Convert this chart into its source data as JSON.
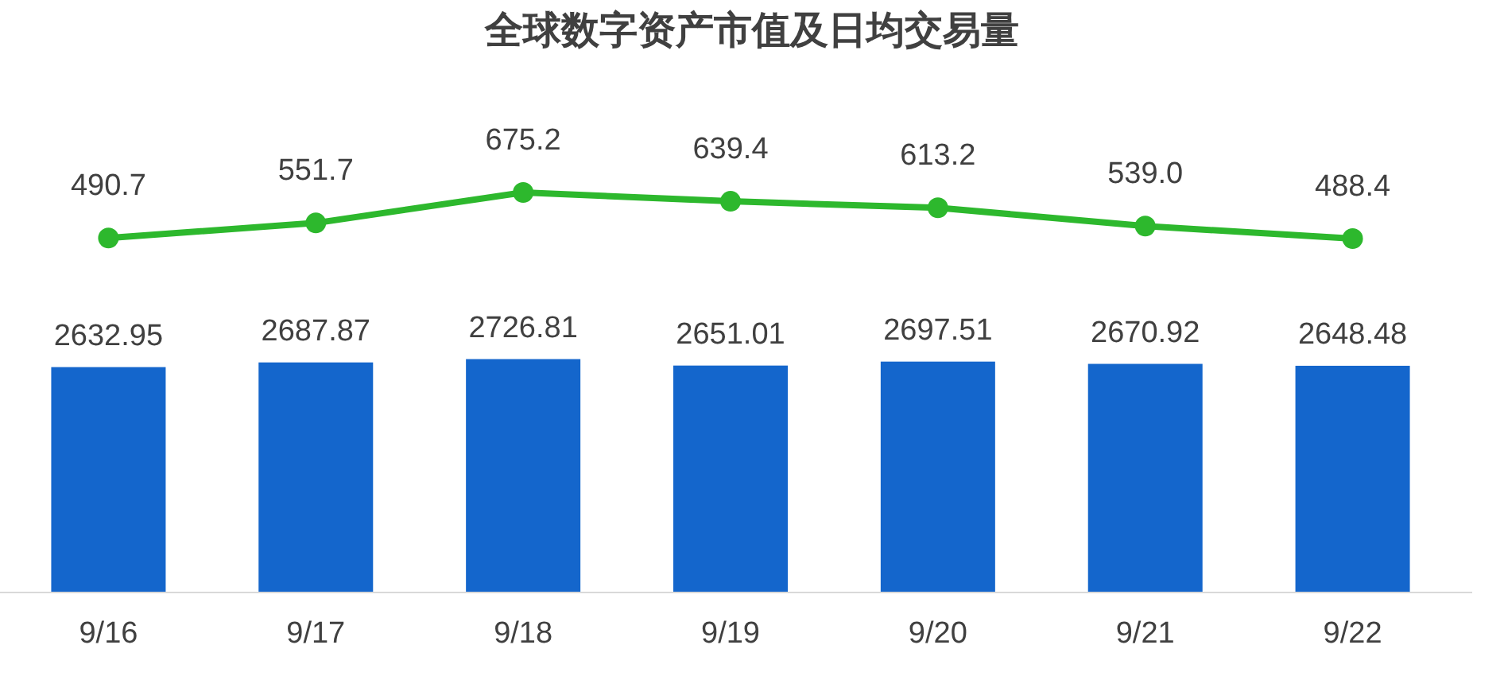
{
  "chart_data": [
    {
      "type": "line",
      "title": "全球数字资产市值及日均交易量",
      "categories": [
        null,
        null,
        null,
        null,
        null,
        null,
        null
      ],
      "tick_labels": false,
      "marker": "circle",
      "series": [
        {
          "color": "#2db82d",
          "values": [
            490.7,
            551.7,
            675.2,
            639.4,
            613.2,
            539.0,
            488.4
          ],
          "value_labels": [
            "490.7",
            "551.7",
            "675.2",
            "639.4",
            "613.2",
            "539.0",
            "488.4"
          ]
        }
      ]
    },
    {
      "type": "bar",
      "categories": [
        "9/16",
        "9/17",
        "9/18",
        "9/19",
        "9/20",
        "9/21",
        "9/22"
      ],
      "tick_labels": "x",
      "series": [
        {
          "color": "#1466cc",
          "values": [
            2632.95,
            2687.87,
            2726.81,
            2651.01,
            2697.51,
            2670.92,
            2648.48
          ],
          "value_labels": [
            "2632.95",
            "2687.87",
            "2726.81",
            "2651.01",
            "2697.51",
            "2670.92",
            "2648.48"
          ]
        }
      ]
    }
  ]
}
